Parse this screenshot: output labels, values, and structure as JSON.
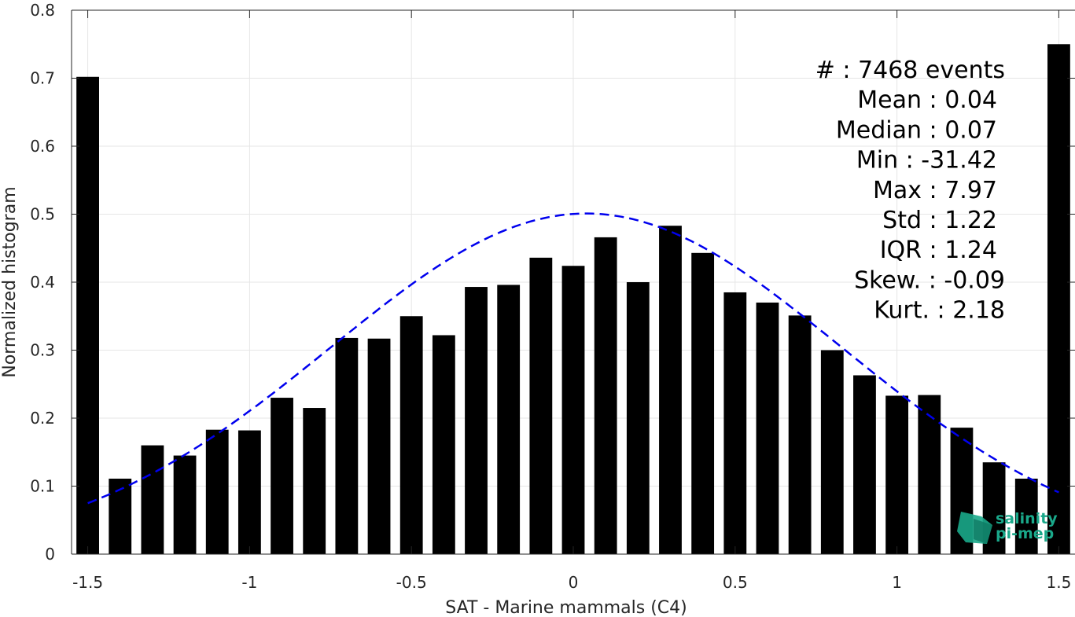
{
  "chart_data": {
    "type": "bar",
    "xlabel": "SAT - Marine mammals (C4)",
    "ylabel": "Normalized histogram",
    "xlim": [
      -1.55,
      1.55
    ],
    "ylim": [
      0,
      0.8
    ],
    "xticks": [
      -1.5,
      -1,
      -0.5,
      0,
      0.5,
      1,
      1.5
    ],
    "xtick_labels": [
      "-1.5",
      "-1",
      "-0.5",
      "0",
      "0.5",
      "1",
      "1.5"
    ],
    "yticks": [
      0,
      0.1,
      0.2,
      0.3,
      0.4,
      0.5,
      0.6,
      0.7,
      0.8
    ],
    "ytick_labels": [
      "0",
      "0.1",
      "0.2",
      "0.3",
      "0.4",
      "0.5",
      "0.6",
      "0.7",
      "0.8"
    ],
    "grid": true,
    "bar_color": "#000000",
    "bar_width": 0.07,
    "bins": [
      {
        "x": -1.5,
        "y": 0.702
      },
      {
        "x": -1.4,
        "y": 0.111
      },
      {
        "x": -1.3,
        "y": 0.16
      },
      {
        "x": -1.2,
        "y": 0.145
      },
      {
        "x": -1.1,
        "y": 0.183
      },
      {
        "x": -1.0,
        "y": 0.182
      },
      {
        "x": -0.9,
        "y": 0.23
      },
      {
        "x": -0.8,
        "y": 0.215
      },
      {
        "x": -0.7,
        "y": 0.318
      },
      {
        "x": -0.6,
        "y": 0.317
      },
      {
        "x": -0.5,
        "y": 0.35
      },
      {
        "x": -0.4,
        "y": 0.322
      },
      {
        "x": -0.3,
        "y": 0.393
      },
      {
        "x": -0.2,
        "y": 0.396
      },
      {
        "x": -0.1,
        "y": 0.436
      },
      {
        "x": 0.0,
        "y": 0.424
      },
      {
        "x": 0.1,
        "y": 0.466
      },
      {
        "x": 0.2,
        "y": 0.4
      },
      {
        "x": 0.3,
        "y": 0.483
      },
      {
        "x": 0.4,
        "y": 0.443
      },
      {
        "x": 0.5,
        "y": 0.385
      },
      {
        "x": 0.6,
        "y": 0.37
      },
      {
        "x": 0.7,
        "y": 0.351
      },
      {
        "x": 0.8,
        "y": 0.3
      },
      {
        "x": 0.9,
        "y": 0.263
      },
      {
        "x": 1.0,
        "y": 0.233
      },
      {
        "x": 1.1,
        "y": 0.234
      },
      {
        "x": 1.2,
        "y": 0.186
      },
      {
        "x": 1.3,
        "y": 0.135
      },
      {
        "x": 1.4,
        "y": 0.111
      },
      {
        "x": 1.5,
        "y": 0.75
      }
    ],
    "fit": {
      "style": "dashed",
      "color": "#0000ee",
      "x_range": [
        -1.5,
        1.5
      ],
      "mean": 0.04,
      "std": 0.79,
      "peak": 0.501
    },
    "stats": [
      {
        "label": "#  ",
        "value": "7468 events"
      },
      {
        "label": "Mean",
        "value": "0.04"
      },
      {
        "label": "Median",
        "value": "0.07"
      },
      {
        "label": "Min",
        "value": "-31.42"
      },
      {
        "label": "Max",
        "value": "7.97"
      },
      {
        "label": "Std",
        "value": "1.22"
      },
      {
        "label": "IQR",
        "value": "1.24"
      },
      {
        "label": "Skew.",
        "value": "-0.09"
      },
      {
        "label": "Kurt.",
        "value": "2.18"
      }
    ]
  },
  "logo": {
    "line1": "salinity",
    "line2": "pi-mep",
    "color": "#1aa88a"
  }
}
